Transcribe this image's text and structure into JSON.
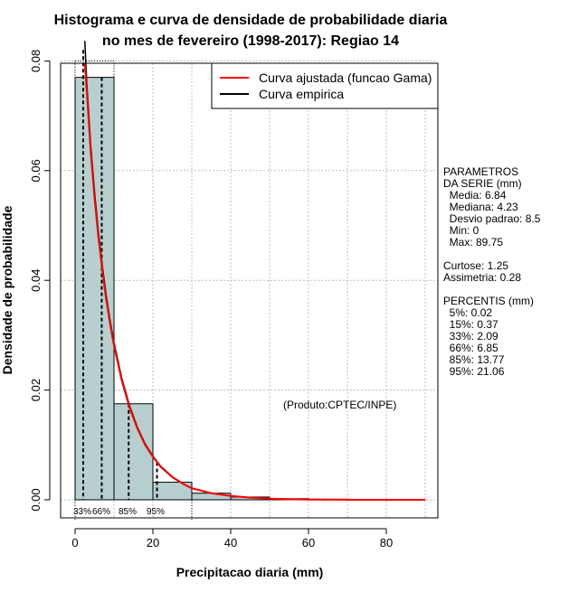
{
  "chart_data": {
    "type": "bar",
    "title_lines": [
      "Histograma e curva de densidade de probabilidade diaria",
      "no mes de fevereiro (1998-2017): Regiao 14"
    ],
    "xlabel": "Precipitacao diaria (mm)",
    "ylabel": "Densidade de probabilidade",
    "xlim": [
      -5,
      95
    ],
    "ylim": [
      0,
      0.08
    ],
    "x_ticks": [
      0,
      20,
      40,
      60,
      80
    ],
    "y_ticks": [
      0.0,
      0.02,
      0.04,
      0.06,
      0.08
    ],
    "y_tick_labels": [
      "0.00",
      "0.02",
      "0.04",
      "0.06",
      "0.08"
    ],
    "grid": true,
    "bins": [
      {
        "x0": 0,
        "x1": 10,
        "density": 0.077
      },
      {
        "x0": 10,
        "x1": 20,
        "density": 0.0175
      },
      {
        "x0": 20,
        "x1": 30,
        "density": 0.0032
      },
      {
        "x0": 30,
        "x1": 40,
        "density": 0.0012
      },
      {
        "x0": 40,
        "x1": 50,
        "density": 0.0005
      },
      {
        "x0": 50,
        "x1": 60,
        "density": 0.0002
      },
      {
        "x0": 60,
        "x1": 70,
        "density": 0.0001
      },
      {
        "x0": 70,
        "x1": 80,
        "density": 0.0
      },
      {
        "x0": 80,
        "x1": 90,
        "density": 0.0
      }
    ],
    "fitted_curve": {
      "name": "Curva ajustada (funcao Gama)",
      "color": "#ff0000",
      "x": [
        2.5,
        3,
        4,
        5,
        6,
        7,
        8,
        9,
        10,
        12,
        14,
        16,
        18,
        20,
        22,
        25,
        28,
        30,
        35,
        40,
        45,
        50,
        55,
        60,
        70,
        80,
        90
      ],
      "y": [
        0.082,
        0.0745,
        0.0635,
        0.055,
        0.0478,
        0.0418,
        0.0365,
        0.032,
        0.0281,
        0.0217,
        0.0168,
        0.013,
        0.01,
        0.0078,
        0.006,
        0.0041,
        0.0028,
        0.0021,
        0.0012,
        0.0007,
        0.0004,
        0.0002,
        0.0001,
        5e-05,
        1e-05,
        0.0,
        0.0
      ]
    },
    "empirical_curve": {
      "name": "Curva empirica",
      "color": "#000000"
    },
    "percentile_lines": [
      {
        "label": "33%",
        "value": 2.09
      },
      {
        "label": "66%",
        "value": 6.85
      },
      {
        "label": "85%",
        "value": 13.77
      },
      {
        "label": "95%",
        "value": 21.06
      }
    ],
    "bar_color": "#b7cfcf",
    "stats_text": [
      "PARAMETROS",
      "DA SERIE (mm)",
      "  Media: 6.84",
      "  Mediana: 4.23",
      "  Desvio padrao: 8.5",
      "  Min: 0",
      "  Max: 89.75",
      "",
      "Curtose: 1.25",
      "Assimetria: 0.28",
      "",
      "PERCENTIS (mm)",
      "  5%: 0.02",
      "  15%: 0.37",
      "  33%: 2.09",
      "  66%: 6.85",
      "  85%: 13.77",
      "  95%: 21.06"
    ],
    "credit": "(Produto:CPTEC/INPE)"
  }
}
